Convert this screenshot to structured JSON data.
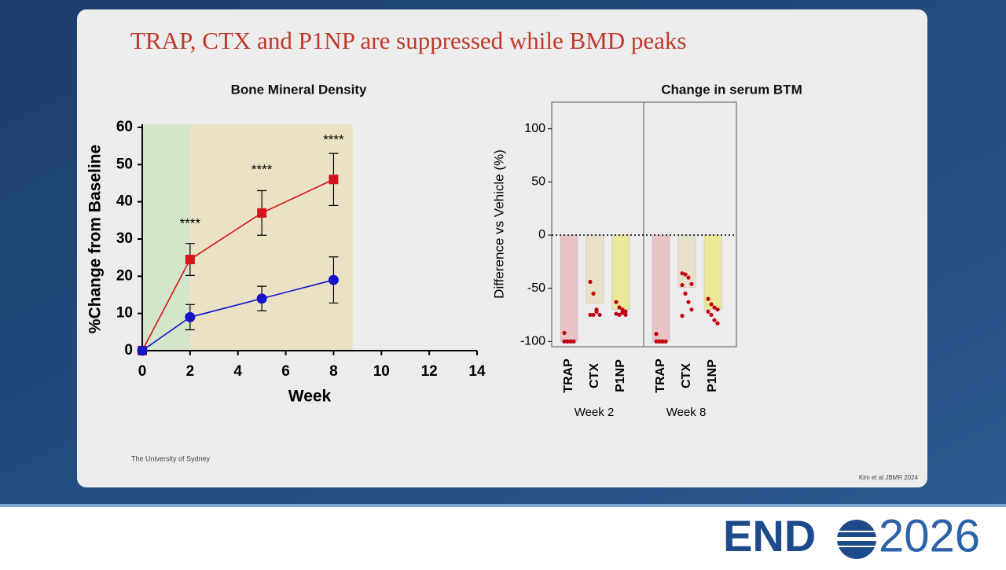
{
  "slide": {
    "title": "TRAP, CTX and P1NP are suppressed while BMD peaks",
    "footer_left": "The University of Sydney",
    "footer_right": "Kim et al JBMR 2024",
    "brand": "END",
    "brand_year": "2026"
  },
  "chart_data": [
    {
      "type": "line",
      "title": "Bone Mineral Density",
      "x_label": "Week",
      "y_label": "%Change from Baseline",
      "xlim": [
        0,
        14
      ],
      "xticks": [
        0,
        2,
        4,
        6,
        8,
        10,
        12,
        14
      ],
      "ylim": [
        0,
        60
      ],
      "yticks": [
        0,
        10,
        20,
        30,
        40,
        50,
        60
      ],
      "regions": [
        {
          "start": 0,
          "end": 2,
          "color": "#d3e6c9"
        },
        {
          "start": 2,
          "end": 8.8,
          "color": "#ebe2c6"
        }
      ],
      "series": [
        {
          "color": "#d4141c",
          "marker": "square",
          "x": [
            0,
            2,
            5,
            8
          ],
          "values": [
            0,
            24.5,
            37,
            46
          ],
          "errors": [
            0,
            4.3,
            6,
            7
          ]
        },
        {
          "color": "#1414c8",
          "marker": "circle",
          "x": [
            0,
            2,
            5,
            8
          ],
          "values": [
            0,
            9,
            14,
            19
          ],
          "errors": [
            0,
            3.4,
            3.3,
            6.2
          ]
        }
      ],
      "annotations": [
        {
          "text": "****",
          "x": 2,
          "y": 34
        },
        {
          "text": "****",
          "x": 5,
          "y": 48.5
        },
        {
          "text": "****",
          "x": 8,
          "y": 56.5
        }
      ]
    },
    {
      "type": "bar",
      "title": "Change in serum BTM",
      "y_label": "Difference vs Vehicle (%)",
      "ylim": [
        -105,
        125
      ],
      "yticks": [
        -100,
        -50,
        0,
        50,
        100
      ],
      "point_color": "#c00010",
      "panels": [
        {
          "name": "Week 2",
          "categories": [
            "TRAP",
            "CTX",
            "P1NP"
          ],
          "colors": [
            "#e9c3c6",
            "#e9e0c8",
            "#ece89a"
          ],
          "values": [
            -100,
            -64,
            -70
          ],
          "points": [
            [
              -92,
              -100,
              -100,
              -100,
              -100,
              -100,
              -100
            ],
            [
              -44,
              -55,
              -70,
              -75,
              -75,
              -75,
              -72
            ],
            [
              -63,
              -68,
              -70,
              -72,
              -74,
              -75,
              -73,
              -75
            ]
          ]
        },
        {
          "name": "Week 8",
          "categories": [
            "TRAP",
            "CTX",
            "P1NP"
          ],
          "colors": [
            "#e9c3c6",
            "#e9e0c8",
            "#ece89a"
          ],
          "values": [
            -100,
            -49,
            -70
          ],
          "points": [
            [
              -93,
              -100,
              -100,
              -100,
              -100,
              -100,
              -100
            ],
            [
              -36,
              -37,
              -40,
              -46,
              -47,
              -55,
              -63,
              -70,
              -76
            ],
            [
              -60,
              -65,
              -68,
              -70,
              -72,
              -75,
              -80,
              -83
            ]
          ]
        }
      ]
    }
  ]
}
